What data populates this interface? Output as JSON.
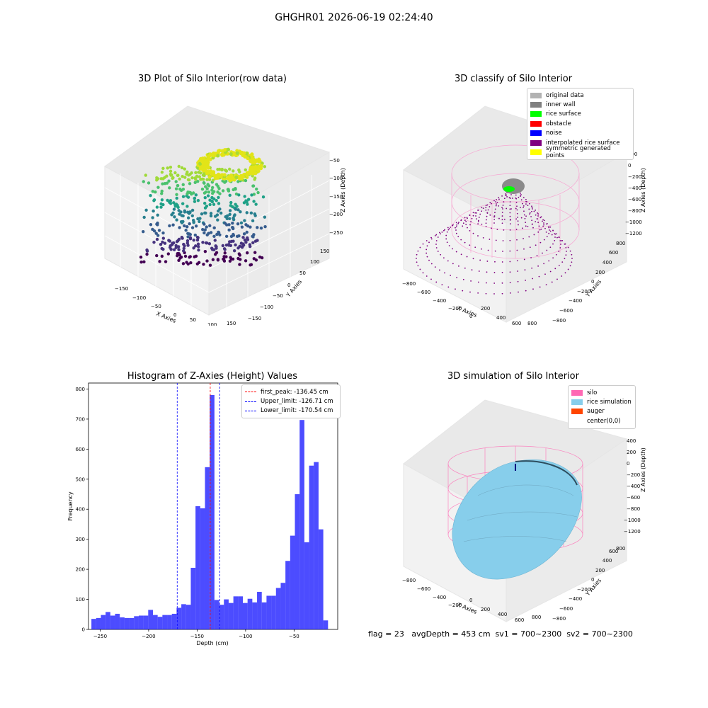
{
  "figure": {
    "suptitle": "GHGHR01 2026-06-19 02:24:40",
    "footer": "flag = 23   avgDepth = 453 cm  sv1 = 700~2300  sv2 = 700~2300"
  },
  "panels": {
    "raw": {
      "title": "3D Plot of Silo Interior(row data)",
      "xlabel": "X Axies",
      "ylabel": "Y Axies",
      "zlabel": "Z Axies (Depth)",
      "xticks": [
        "−150",
        "−100",
        "−50",
        "0",
        "50",
        "100",
        "150"
      ],
      "yticks": [
        "−150",
        "−100",
        "−50",
        "0",
        "50",
        "100",
        "150"
      ],
      "zticks": [
        "−50",
        "−100",
        "−150",
        "−200",
        "−250"
      ],
      "colormap": "viridis"
    },
    "classify": {
      "title": "3D classify of Silo Interior",
      "xlabel": "X Axies",
      "ylabel": "Y Axies",
      "zlabel": "Z Axies (Depth)",
      "xticks": [
        "−800",
        "−600",
        "−400",
        "−200",
        "0",
        "200",
        "400",
        "600",
        "800"
      ],
      "yticks": [
        "−800",
        "−600",
        "−400",
        "−200",
        "0",
        "200",
        "400",
        "600",
        "800"
      ],
      "zticks": [
        "200",
        "0",
        "−200",
        "−400",
        "−600",
        "−800",
        "−1000",
        "−1200"
      ],
      "legend": [
        {
          "label": "original data",
          "color": "#b2b2b2"
        },
        {
          "label": "inner wall",
          "color": "#808080"
        },
        {
          "label": "rice surface",
          "color": "#00ff00"
        },
        {
          "label": "obstacle",
          "color": "#ff0000"
        },
        {
          "label": "noise",
          "color": "#0000ff"
        },
        {
          "label": "interpolated rice surface",
          "color": "#800080"
        },
        {
          "label": "symmetric generated points",
          "color": "#ffff00"
        }
      ]
    },
    "simulation": {
      "title": "3D simulation of Silo Interior",
      "xlabel": "X Axies",
      "ylabel": "Y Axies",
      "zlabel": "Z Axies (Depth)",
      "xticks": [
        "−800",
        "−600",
        "−400",
        "−200",
        "0",
        "200",
        "400",
        "600",
        "800"
      ],
      "yticks": [
        "−800",
        "−600",
        "−400",
        "−200",
        "0",
        "200",
        "400",
        "600",
        "800"
      ],
      "zticks": [
        "400",
        "200",
        "0",
        "−200",
        "−400",
        "−600",
        "−800",
        "−1000",
        "−1200"
      ],
      "legend": [
        {
          "label": "silo",
          "color": "#ff69b4"
        },
        {
          "label": "rice simulation",
          "color": "#87ceeb"
        },
        {
          "label": "auger",
          "color": "#ff4500"
        },
        {
          "label": "center(0,0)",
          "color": "#ffffff"
        }
      ]
    }
  },
  "chart_data": {
    "type": "bar",
    "title": "Histogram of Z-Axies (Height) Values",
    "xlabel": "Depth (cm)",
    "ylabel": "Frequency",
    "xlim": [
      -262,
      -5
    ],
    "ylim": [
      0,
      820
    ],
    "xticks": [
      -250,
      -200,
      -150,
      -100,
      -50
    ],
    "yticks": [
      0,
      100,
      200,
      300,
      400,
      500,
      600,
      700,
      800
    ],
    "bar_color": "#0000ff",
    "bins_start": -259,
    "bin_width": 4.88,
    "values": [
      35,
      38,
      48,
      58,
      46,
      52,
      40,
      38,
      38,
      44,
      46,
      46,
      65,
      48,
      42,
      48,
      48,
      52,
      72,
      84,
      82,
      205,
      410,
      403,
      540,
      780,
      98,
      82,
      100,
      88,
      110,
      110,
      88,
      102,
      90,
      125,
      90,
      112,
      112,
      138,
      155,
      228,
      312,
      450,
      697,
      290,
      545,
      557,
      333,
      30
    ],
    "vlines": [
      {
        "label": "first_peak: -136.45 cm",
        "x": -136.45,
        "color": "#ff0000"
      },
      {
        "label": "Upper_limit: -126.71 cm",
        "x": -126.71,
        "color": "#0000ff"
      },
      {
        "label": "Lower_limit: -170.54 cm",
        "x": -170.54,
        "color": "#0000ff"
      }
    ],
    "legend_position": "upper right"
  }
}
